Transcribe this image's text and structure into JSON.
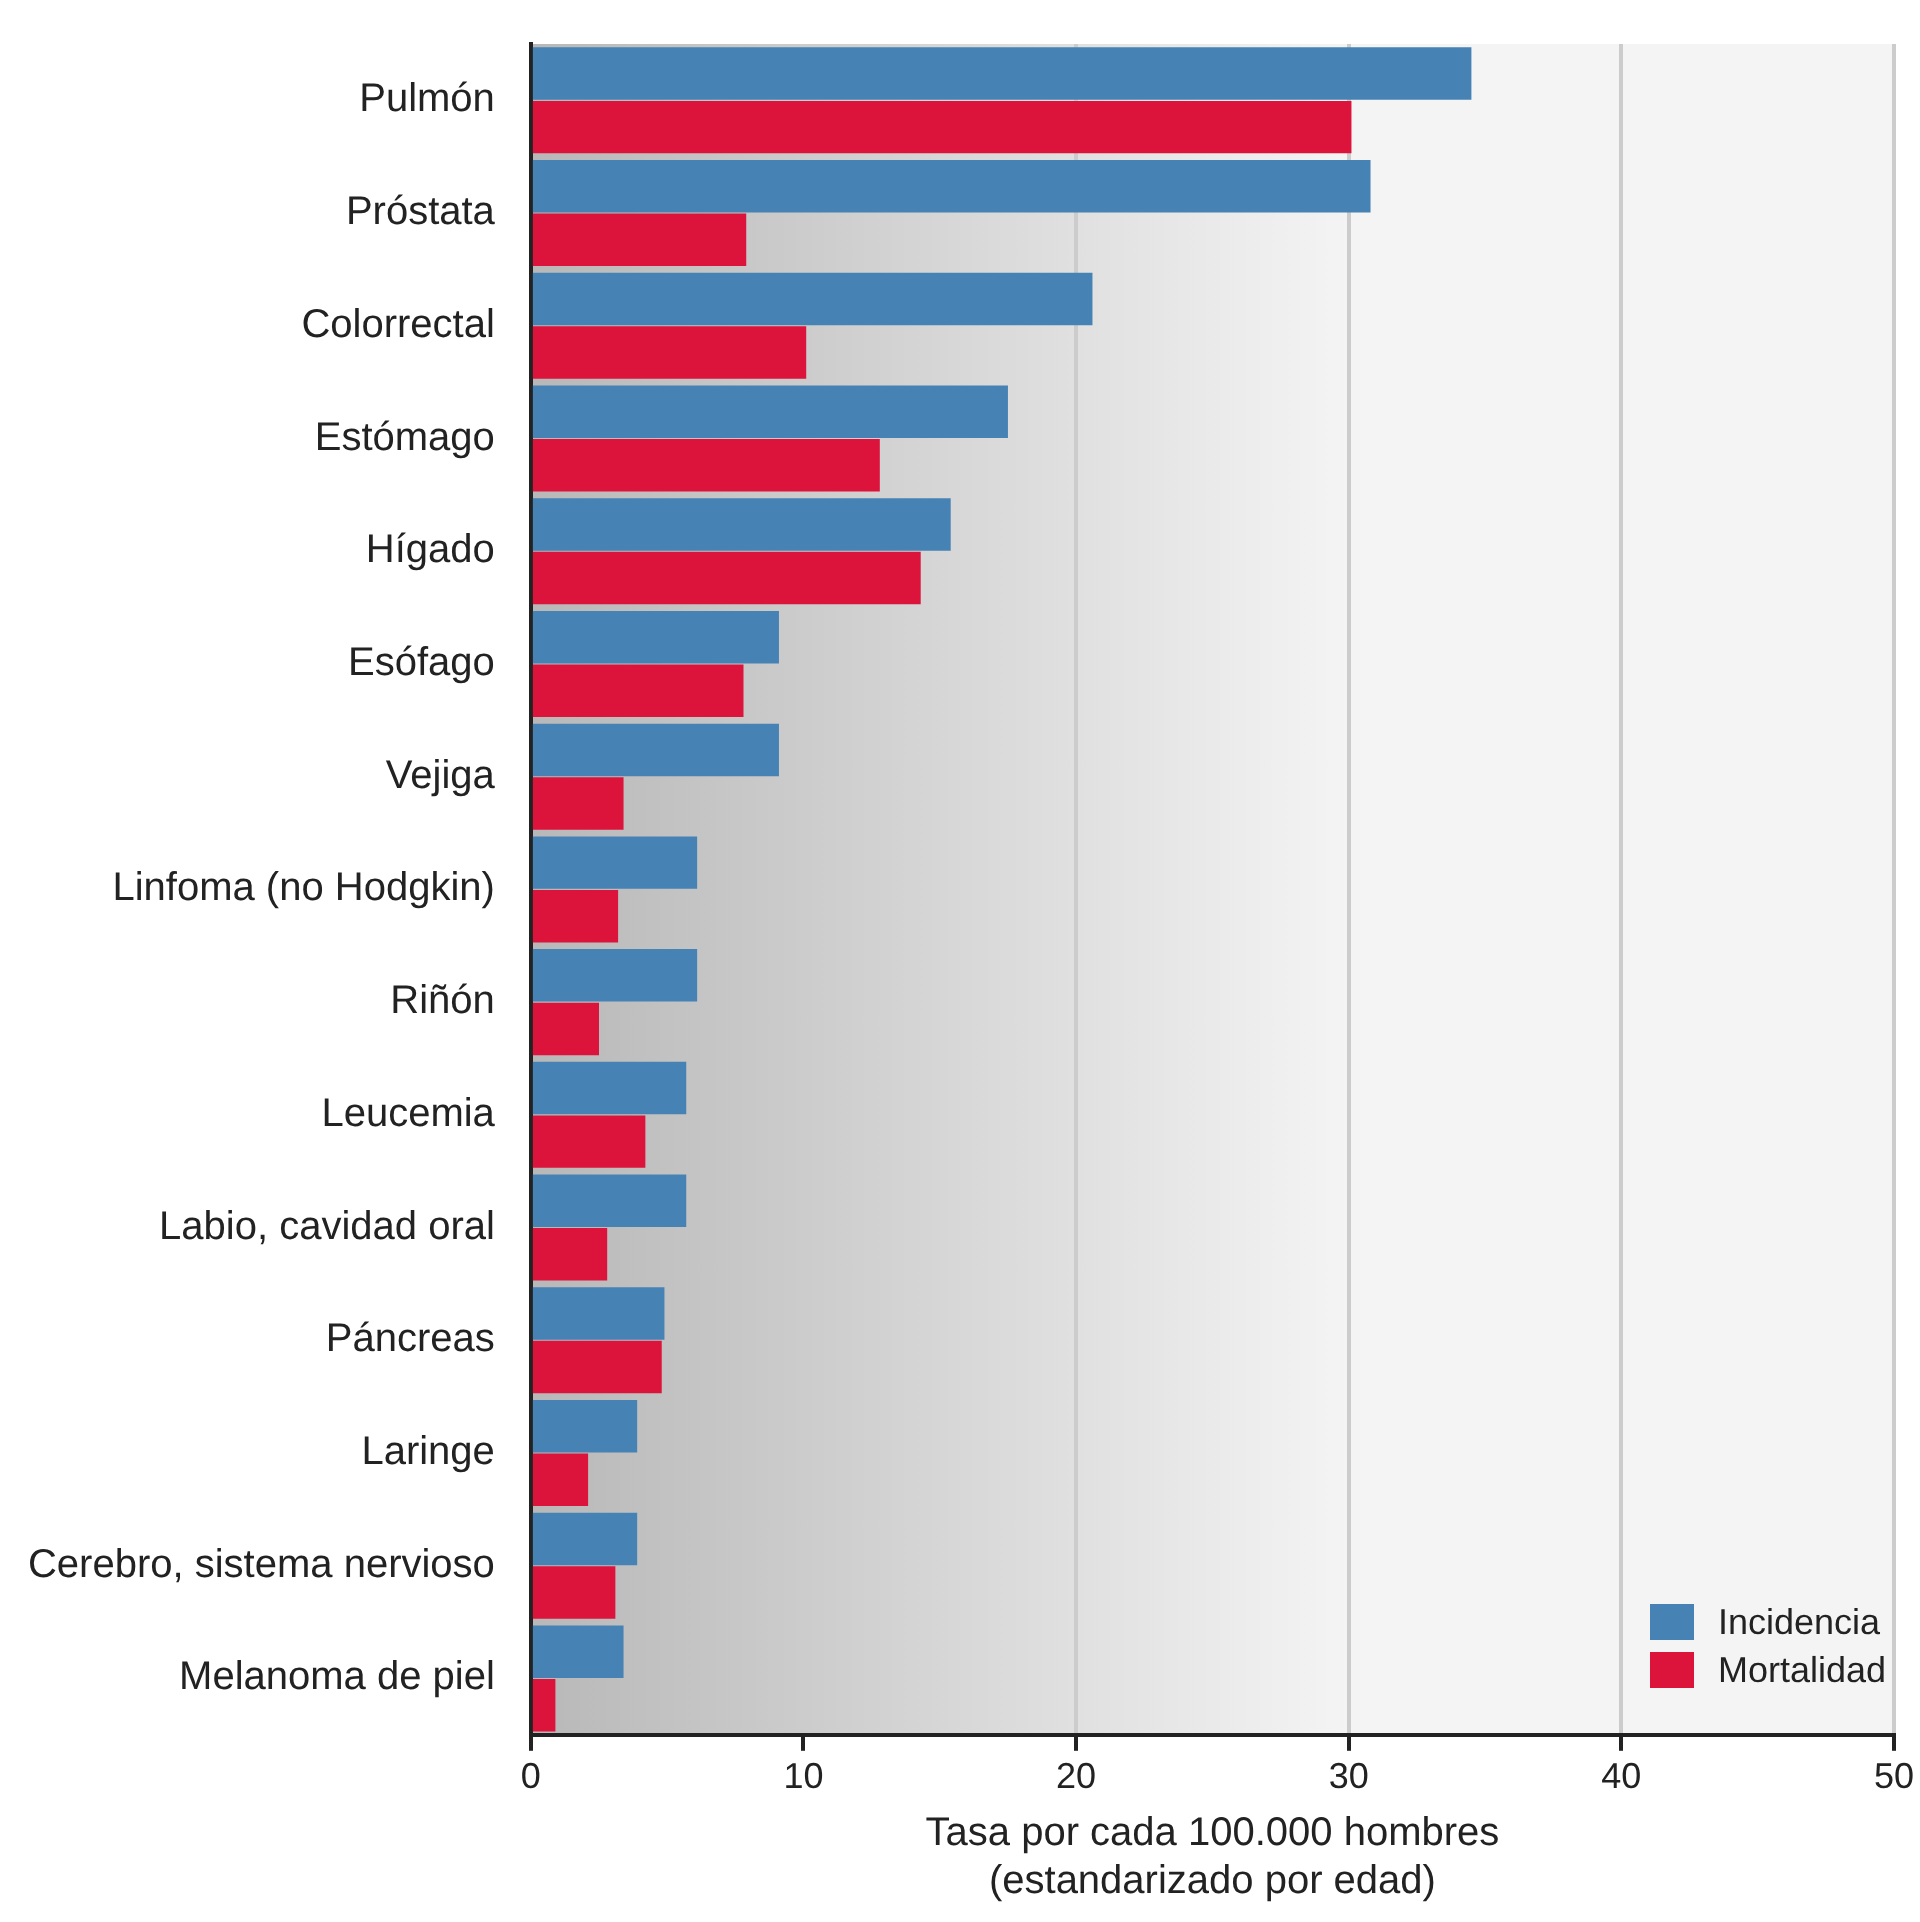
{
  "chart_data": {
    "type": "bar",
    "orientation": "horizontal",
    "categories": [
      "Pulmón",
      "Próstata",
      "Colorrectal",
      "Estómago",
      "Hígado",
      "Esófago",
      "Vejiga",
      "Linfoma (no Hodgkin)",
      "Riñón",
      "Leucemia",
      "Labio, cavidad oral",
      "Páncreas",
      "Laringe",
      "Cerebro, sistema nervioso",
      "Melanoma de piel"
    ],
    "series": [
      {
        "name": "Incidencia",
        "color": "#4682b4",
        "values": [
          34.5,
          30.8,
          20.6,
          17.5,
          15.4,
          9.1,
          9.1,
          6.1,
          6.1,
          5.7,
          5.7,
          4.9,
          3.9,
          3.9,
          3.4
        ]
      },
      {
        "name": "Mortalidad",
        "color": "#dc143c",
        "values": [
          30.1,
          7.9,
          10.1,
          12.8,
          14.3,
          7.8,
          3.4,
          3.2,
          2.5,
          4.2,
          2.8,
          4.8,
          2.1,
          3.1,
          0.9
        ]
      }
    ],
    "xlim": [
      0,
      50
    ],
    "xticks": [
      0,
      10,
      20,
      30,
      40,
      50
    ],
    "xlabel": "Tasa por cada 100.000 hombres\n(estandarizado por edad)",
    "grid": "x",
    "legend": "bottom right"
  }
}
